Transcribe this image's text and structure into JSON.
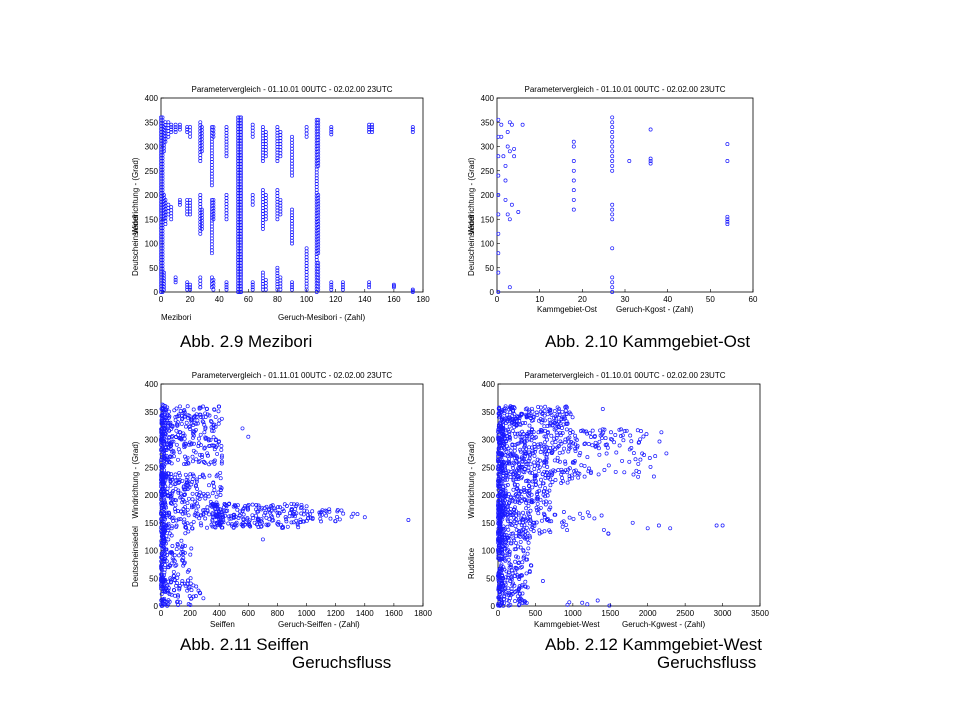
{
  "page_background": "#ffffff",
  "marker_color": "#1a1aff",
  "captions": {
    "c1": {
      "line1": "Abb. 2.9   Mezibori",
      "line2": ""
    },
    "c2": {
      "line1": "Abb. 2.10  Kammgebiet-Ost",
      "line2": ""
    },
    "c3": {
      "line1": "Abb. 2.11  Seiffen",
      "line2": "Geruchsfluss"
    },
    "c4": {
      "line1": "Abb. 2.12  Kammgebiet-West",
      "line2": "Geruchsfluss"
    }
  },
  "chart_data": [
    {
      "id": "mezibori",
      "type": "scatter",
      "title": "Parametervergleich  -  01.10.01  00UTC  -  02.02.00  23UTC",
      "xlabel_left": "Mezibori",
      "xlabel": "Geruch-Mesibori - (Zahl)",
      "ylabel_station": "Deutscheinsiedel",
      "ylabel": "Windrichtung - (Grad)",
      "xlim": [
        0,
        180
      ],
      "ylim": [
        0,
        400
      ],
      "xticks": [
        0,
        20,
        40,
        60,
        80,
        100,
        120,
        140,
        160,
        180
      ],
      "yticks": [
        0,
        50,
        100,
        150,
        200,
        250,
        300,
        350,
        400
      ],
      "column_x": [
        0,
        1,
        2,
        3,
        5,
        7,
        10,
        13,
        18,
        20,
        27,
        28,
        35,
        36,
        45,
        53,
        54,
        55,
        63,
        70,
        72,
        80,
        82,
        90,
        100,
        107,
        108,
        117,
        125,
        143,
        145,
        160,
        173
      ],
      "column_bands": [
        [
          [
            0,
            360
          ]
        ],
        [
          [
            0,
            360
          ]
        ],
        [
          [
            150,
            200
          ],
          [
            290,
            340
          ],
          [
            5,
            40
          ]
        ],
        [
          [
            310,
            350
          ],
          [
            140,
            190
          ]
        ],
        [
          [
            320,
            350
          ],
          [
            160,
            180
          ]
        ],
        [
          [
            330,
            345
          ],
          [
            150,
            175
          ]
        ],
        [
          [
            330,
            345
          ],
          [
            20,
            30
          ]
        ],
        [
          [
            335,
            345
          ],
          [
            180,
            190
          ]
        ],
        [
          [
            330,
            340
          ],
          [
            160,
            190
          ],
          [
            5,
            20
          ]
        ],
        [
          [
            320,
            340
          ],
          [
            160,
            190
          ],
          [
            5,
            15
          ]
        ],
        [
          [
            270,
            350
          ],
          [
            120,
            200
          ],
          [
            10,
            30
          ]
        ],
        [
          [
            290,
            340
          ],
          [
            130,
            170
          ]
        ],
        [
          [
            220,
            340
          ],
          [
            80,
            190
          ],
          [
            10,
            30
          ]
        ],
        [
          [
            320,
            340
          ],
          [
            150,
            190
          ],
          [
            5,
            25
          ]
        ],
        [
          [
            280,
            340
          ],
          [
            150,
            200
          ],
          [
            5,
            20
          ]
        ],
        [
          [
            0,
            360
          ]
        ],
        [
          [
            0,
            360
          ]
        ],
        [
          [
            0,
            360
          ]
        ],
        [
          [
            320,
            345
          ],
          [
            180,
            200
          ],
          [
            5,
            20
          ]
        ],
        [
          [
            270,
            340
          ],
          [
            130,
            210
          ],
          [
            5,
            40
          ]
        ],
        [
          [
            280,
            330
          ],
          [
            150,
            200
          ],
          [
            5,
            25
          ]
        ],
        [
          [
            270,
            340
          ],
          [
            150,
            210
          ],
          [
            5,
            50
          ]
        ],
        [
          [
            280,
            330
          ],
          [
            160,
            190
          ],
          [
            5,
            30
          ]
        ],
        [
          [
            240,
            320
          ],
          [
            100,
            170
          ],
          [
            5,
            20
          ]
        ],
        [
          [
            320,
            340
          ],
          [
            5,
            90
          ]
        ],
        [
          [
            0,
            355
          ]
        ],
        [
          [
            260,
            355
          ],
          [
            80,
            200
          ],
          [
            5,
            60
          ]
        ],
        [
          [
            325,
            340
          ],
          [
            5,
            20
          ]
        ],
        [
          [
            5,
            20
          ]
        ],
        [
          [
            330,
            345
          ],
          [
            10,
            20
          ]
        ],
        [
          [
            330,
            345
          ]
        ],
        [
          [
            10,
            15
          ]
        ],
        [
          [
            330,
            340
          ],
          [
            0,
            5
          ]
        ]
      ]
    },
    {
      "id": "kammgebiet-ost",
      "type": "scatter",
      "title": "Parametervergleich  -  01.10.01  00UTC  -  02.02.00  23UTC",
      "xlabel_left": "Kammgebiet-Ost",
      "xlabel": "Geruch-Kgost - (Zahl)",
      "ylabel_station": "Deutscheinsiedel",
      "ylabel": "Windrichtung - (Grad)",
      "xlim": [
        0,
        60
      ],
      "ylim": [
        0,
        400
      ],
      "xticks": [
        0,
        10,
        20,
        30,
        40,
        50,
        60
      ],
      "yticks": [
        0,
        50,
        100,
        150,
        200,
        250,
        300,
        350,
        400
      ],
      "points": [
        [
          0.3,
          0
        ],
        [
          0.3,
          40
        ],
        [
          0.3,
          80
        ],
        [
          0.3,
          120
        ],
        [
          0.3,
          160
        ],
        [
          0.3,
          200
        ],
        [
          0.3,
          240
        ],
        [
          0.3,
          280
        ],
        [
          0.3,
          320
        ],
        [
          0.3,
          355
        ],
        [
          1,
          345
        ],
        [
          1,
          320
        ],
        [
          1.5,
          280
        ],
        [
          2,
          260
        ],
        [
          2,
          230
        ],
        [
          2,
          190
        ],
        [
          2.5,
          160
        ],
        [
          3,
          150
        ],
        [
          3,
          10
        ],
        [
          2.5,
          330
        ],
        [
          3,
          350
        ],
        [
          3.5,
          345
        ],
        [
          2.5,
          300
        ],
        [
          3,
          290
        ],
        [
          4,
          295
        ],
        [
          4,
          280
        ],
        [
          3.5,
          180
        ],
        [
          5,
          165
        ],
        [
          6,
          345
        ],
        [
          18,
          310
        ],
        [
          18,
          300
        ],
        [
          18,
          270
        ],
        [
          18,
          250
        ],
        [
          18,
          230
        ],
        [
          18,
          210
        ],
        [
          18,
          190
        ],
        [
          18,
          170
        ],
        [
          27,
          360
        ],
        [
          27,
          350
        ],
        [
          27,
          340
        ],
        [
          27,
          330
        ],
        [
          27,
          320
        ],
        [
          27,
          310
        ],
        [
          27,
          300
        ],
        [
          27,
          290
        ],
        [
          27,
          280
        ],
        [
          27,
          270
        ],
        [
          27,
          260
        ],
        [
          27,
          250
        ],
        [
          27,
          180
        ],
        [
          27,
          170
        ],
        [
          27,
          160
        ],
        [
          27,
          150
        ],
        [
          27,
          90
        ],
        [
          27,
          30
        ],
        [
          27,
          20
        ],
        [
          27,
          10
        ],
        [
          27,
          0
        ],
        [
          31,
          270
        ],
        [
          36,
          335
        ],
        [
          36,
          275
        ],
        [
          36,
          270
        ],
        [
          36,
          265
        ],
        [
          54,
          305
        ],
        [
          54,
          270
        ],
        [
          54,
          155
        ],
        [
          54,
          150
        ],
        [
          54,
          145
        ],
        [
          54,
          140
        ]
      ]
    },
    {
      "id": "seiffen",
      "type": "scatter",
      "title": "Parametervergleich  -  01.11.01  00UTC  -  02.02.00  23UTC",
      "xlabel_left": "Seiffen",
      "xlabel": "Geruch-Seiffen - (Zahl)",
      "ylabel_station": "Deutscheinsiedel",
      "ylabel": "Windrichtung - (Grad)",
      "xlim": [
        0,
        1800
      ],
      "ylim": [
        0,
        400
      ],
      "xticks": [
        0,
        200,
        400,
        600,
        800,
        1000,
        1200,
        1400,
        1600,
        1800
      ],
      "yticks": [
        0,
        50,
        100,
        150,
        200,
        250,
        300,
        350,
        400
      ],
      "clusters": [
        {
          "x": [
            0,
            30
          ],
          "y": [
            0,
            365
          ],
          "n": 300
        },
        {
          "x": [
            20,
            420
          ],
          "y": [
            255,
            360
          ],
          "n": 260
        },
        {
          "x": [
            20,
            420
          ],
          "y": [
            140,
            240
          ],
          "n": 230
        },
        {
          "x": [
            350,
            1000
          ],
          "y": [
            140,
            185
          ],
          "n": 230
        },
        {
          "x": [
            1000,
            1350
          ],
          "y": [
            150,
            175
          ],
          "n": 35
        },
        {
          "x": [
            20,
            220
          ],
          "y": [
            60,
            140
          ],
          "n": 60
        },
        {
          "x": [
            20,
            220
          ],
          "y": [
            0,
            60
          ],
          "n": 60
        },
        {
          "x": [
            220,
            300
          ],
          "y": [
            5,
            40
          ],
          "n": 8
        }
      ],
      "points": [
        [
          1400,
          160
        ],
        [
          1700,
          155
        ],
        [
          560,
          320
        ],
        [
          600,
          305
        ],
        [
          700,
          120
        ]
      ]
    },
    {
      "id": "kammgebiet-west",
      "type": "scatter",
      "title": "Parametervergleich  -  01.10.01  00UTC  -  02.02.00  23UTC",
      "xlabel_left": "Kammgebiet-West",
      "xlabel": "Geruch-Kgwest - (Zahl)",
      "ylabel_station": "Rudolice",
      "ylabel": "Windrichtung - (Grad)",
      "xlim": [
        0,
        3500
      ],
      "ylim": [
        0,
        400
      ],
      "xticks": [
        0,
        500,
        1000,
        1500,
        2000,
        2500,
        3000,
        3500
      ],
      "yticks": [
        0,
        50,
        100,
        150,
        200,
        250,
        300,
        350,
        400
      ],
      "clusters": [
        {
          "x": [
            0,
            60
          ],
          "y": [
            0,
            360
          ],
          "n": 320
        },
        {
          "x": [
            50,
            1000
          ],
          "y": [
            220,
            360
          ],
          "n": 520
        },
        {
          "x": [
            50,
            700
          ],
          "y": [
            130,
            220
          ],
          "n": 220
        },
        {
          "x": [
            50,
            450
          ],
          "y": [
            60,
            130
          ],
          "n": 90
        },
        {
          "x": [
            50,
            400
          ],
          "y": [
            0,
            60
          ],
          "n": 90
        },
        {
          "x": [
            1000,
            2200
          ],
          "y": [
            230,
            320
          ],
          "n": 110
        },
        {
          "x": [
            700,
            1600
          ],
          "y": [
            130,
            170
          ],
          "n": 20
        },
        {
          "x": [
            900,
            1500
          ],
          "y": [
            0,
            10
          ],
          "n": 6
        }
      ],
      "points": [
        [
          2000,
          140
        ],
        [
          2150,
          145
        ],
        [
          2300,
          140
        ],
        [
          2920,
          145
        ],
        [
          3000,
          145
        ],
        [
          2250,
          275
        ],
        [
          2100,
          270
        ],
        [
          1800,
          150
        ],
        [
          600,
          45
        ],
        [
          1400,
          355
        ]
      ]
    }
  ]
}
